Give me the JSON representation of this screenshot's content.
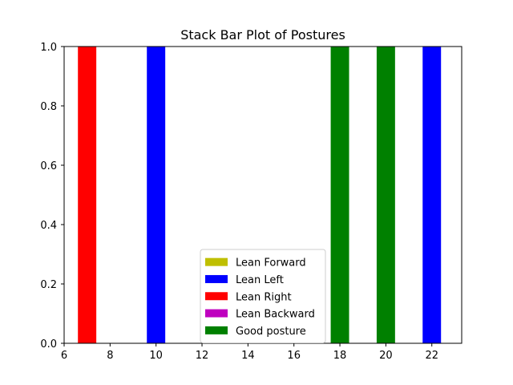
{
  "chart_data": {
    "type": "bar",
    "stacked": true,
    "title": "Stack Bar Plot of Postures",
    "xlabel": "",
    "ylabel": "",
    "xlim": [
      6,
      23.3
    ],
    "ylim": [
      0,
      1
    ],
    "x_ticks": [
      6,
      8,
      10,
      12,
      14,
      16,
      18,
      20,
      22
    ],
    "y_ticks": [
      0.0,
      0.2,
      0.4,
      0.6,
      0.8,
      1.0
    ],
    "y_tick_labels": [
      "0.0",
      "0.2",
      "0.4",
      "0.6",
      "0.8",
      "1.0"
    ],
    "bar_width": 0.8,
    "grid": false,
    "legend_position": "lower center",
    "series": [
      {
        "name": "Lean Forward",
        "color": "#bfbf00",
        "points": []
      },
      {
        "name": "Lean Left",
        "color": "#0000ff",
        "points": [
          {
            "x": 10,
            "y": 1.0
          },
          {
            "x": 22,
            "y": 1.0
          }
        ]
      },
      {
        "name": "Lean Right",
        "color": "#ff0000",
        "points": [
          {
            "x": 7,
            "y": 1.0
          }
        ]
      },
      {
        "name": "Lean Backward",
        "color": "#bf00bf",
        "points": []
      },
      {
        "name": "Good posture",
        "color": "#008000",
        "points": [
          {
            "x": 18,
            "y": 1.0
          },
          {
            "x": 20,
            "y": 1.0
          }
        ]
      }
    ]
  }
}
